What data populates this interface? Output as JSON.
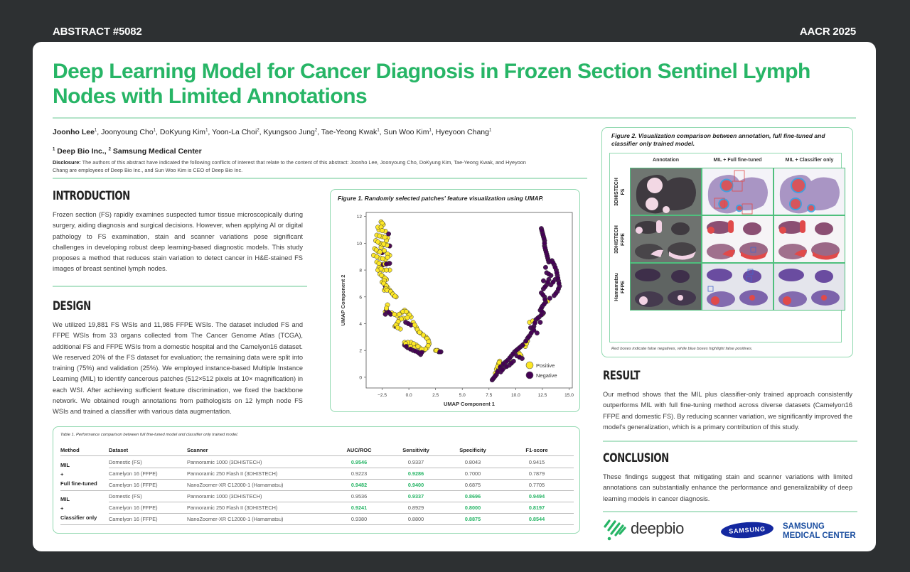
{
  "header": {
    "abstract_number": "ABSTRACT #5082",
    "conference": "AACR 2025"
  },
  "title": "Deep Learning Model for Cancer Diagnosis in Frozen Section Sentinel Lymph Nodes with Limited Annotations",
  "authors": [
    {
      "name": "Joonho Lee",
      "aff": "1",
      "bold": true
    },
    {
      "name": "Joonyoung Cho",
      "aff": "1"
    },
    {
      "name": "DoKyung Kim",
      "aff": "1"
    },
    {
      "name": "Yoon-La Choi",
      "aff": "2"
    },
    {
      "name": "Kyungsoo Jung",
      "aff": "2"
    },
    {
      "name": "Tae-Yeong Kwak",
      "aff": "1"
    },
    {
      "name": "Sun Woo Kim",
      "aff": "1"
    },
    {
      "name": "Hyeyoon Chang",
      "aff": "1"
    }
  ],
  "affiliations": [
    {
      "num": "1",
      "name": "Deep Bio Inc.,"
    },
    {
      "num": "2",
      "name": "Samsung Medical Center"
    }
  ],
  "disclosure": {
    "label": "Disclosure:",
    "text": "The authors of this abstract have indicated the following conflicts of interest that relate to the content of this abstract: Joonho Lee, Joonyoung Cho, DoKyung Kim, Tae-Yeong Kwak, and Hyeyoon Chang are employees of Deep Bio Inc., and Sun Woo Kim is CEO of Deep Bio Inc."
  },
  "sections": {
    "introduction": {
      "heading": "INTRODUCTION",
      "text": "Frozen section (FS) rapidly examines suspected tumor tissue microscopically during surgery, aiding diagnosis and surgical decisions. However, when applying AI or digital pathology to FS examination, stain and scanner variations pose significant challenges in developing robust deep learning-based diagnostic models. This study proposes a method that reduces stain variation to detect cancer in H&E-stained FS images of breast sentinel lymph nodes."
    },
    "design": {
      "heading": "DESIGN",
      "text": "We utilized 19,881 FS WSIs and 11,985 FFPE WSIs. The dataset included FS and FFPE WSIs from 33 organs collected from The Cancer Genome Atlas (TCGA), additional FS and FFPE WSIs from a domestic hospital and the Camelyon16 dataset. We reserved 20% of the FS dataset for evaluation; the remaining data were split into training (75%) and validation (25%). We employed instance-based Multiple Instance Learning (MIL) to identify cancerous patches (512×512 pixels at 10× magnification) in each WSI. After achieving sufficient feature discrimination, we fixed the backbone network. We obtained rough annotations from pathologists on 12 lymph node FS WSIs and trained a classifier with various data augmentation."
    },
    "result": {
      "heading": "RESULT",
      "text": "Our method shows that the MIL plus classifier-only trained approach consistently outperforms MIL with full fine-tuning method across diverse datasets (Camelyon16 FFPE and domestic FS). By reducing scanner variation, we significantly improved the model's generalization, which is a primary contribution of this study."
    },
    "conclusion": {
      "heading": "CONCLUSION",
      "text": "These findings suggest that mitigating stain and scanner variations with limited annotations can substantially enhance the performance and generalizability of deep learning models in cancer diagnosis."
    }
  },
  "figure1": {
    "caption": "Figure 1. Randomly selected patches' feature visualization using UMAP."
  },
  "chart_data": {
    "type": "scatter",
    "title": "Figure 1. Randomly selected patches' feature visualization using UMAP.",
    "xlabel": "UMAP Component 1",
    "ylabel": "UMAP Component 2",
    "xlim": [
      -4.0,
      15.3
    ],
    "ylim": [
      -0.8,
      12.3
    ],
    "xticks": [
      "-2.5",
      "0.0",
      "2.5",
      "5.0",
      "7.5",
      "10.0",
      "12.5",
      "15.0"
    ],
    "yticks": [
      "0",
      "2",
      "4",
      "6",
      "8",
      "10",
      "12"
    ],
    "legend": {
      "position": "lower right",
      "entries": [
        "Positive",
        "Negative"
      ]
    },
    "colors": {
      "Positive": "#fde725",
      "Negative": "#440154"
    },
    "series": [
      {
        "name": "Positive",
        "points": [
          [
            -2.6,
            11.6
          ],
          [
            -2.4,
            11.4
          ],
          [
            -2.8,
            11.0
          ],
          [
            -2.2,
            10.9
          ],
          [
            -3.0,
            10.6
          ],
          [
            -2.5,
            10.5
          ],
          [
            -2.0,
            10.4
          ],
          [
            -3.1,
            10.2
          ],
          [
            -2.7,
            10.0
          ],
          [
            -2.3,
            9.9
          ],
          [
            -1.8,
            9.8
          ],
          [
            -3.2,
            9.6
          ],
          [
            -2.9,
            9.4
          ],
          [
            -2.5,
            9.3
          ],
          [
            -3.3,
            9.1
          ],
          [
            -2.7,
            8.9
          ],
          [
            -2.2,
            8.8
          ],
          [
            -1.8,
            9.1
          ],
          [
            -3.0,
            8.6
          ],
          [
            -2.6,
            8.4
          ],
          [
            -1.9,
            8.5
          ],
          [
            -2.8,
            8.2
          ],
          [
            -2.4,
            8.0
          ],
          [
            -1.8,
            8.0
          ],
          [
            -2.7,
            7.7
          ],
          [
            -2.4,
            7.5
          ],
          [
            -2.1,
            7.3
          ],
          [
            -2.5,
            7.1
          ],
          [
            -2.2,
            6.9
          ],
          [
            -2.0,
            6.7
          ],
          [
            -2.3,
            6.5
          ],
          [
            -1.8,
            6.5
          ],
          [
            -1.6,
            6.3
          ],
          [
            -1.4,
            6.1
          ],
          [
            -1.2,
            6.0
          ],
          [
            -2.0,
            5.4
          ],
          [
            -2.2,
            4.9
          ],
          [
            -1.6,
            4.8
          ],
          [
            -1.1,
            4.6
          ],
          [
            -0.7,
            4.8
          ],
          [
            -0.4,
            5.0
          ],
          [
            -0.1,
            4.8
          ],
          [
            0.2,
            4.5
          ],
          [
            -0.5,
            4.4
          ],
          [
            -0.9,
            4.3
          ],
          [
            -1.1,
            4.0
          ],
          [
            -1.3,
            3.8
          ],
          [
            -0.8,
            3.6
          ],
          [
            0.4,
            4.1
          ],
          [
            0.7,
            3.7
          ],
          [
            0.9,
            3.4
          ],
          [
            1.1,
            3.3
          ],
          [
            1.6,
            3.0
          ],
          [
            1.8,
            2.8
          ],
          [
            1.9,
            2.5
          ],
          [
            1.7,
            2.2
          ],
          [
            1.4,
            2.0
          ],
          [
            1.0,
            2.2
          ],
          [
            0.7,
            2.4
          ],
          [
            0.2,
            2.6
          ],
          [
            -0.4,
            2.6
          ],
          [
            -0.2,
            2.4
          ],
          [
            0.5,
            2.2
          ],
          [
            2.5,
            2.0
          ],
          [
            2.7,
            2.0
          ],
          [
            -2.9,
            11.2
          ],
          [
            -2.1,
            10.2
          ],
          [
            -2.6,
            9.7
          ],
          [
            -2.0,
            9.2
          ],
          [
            -2.9,
            8.0
          ],
          [
            8.2,
            0.6
          ],
          [
            8.4,
            1.0
          ],
          [
            8.5,
            1.2
          ],
          [
            8.1,
            0.3
          ],
          [
            9.6,
            1.1
          ],
          [
            10.3,
            1.8
          ],
          [
            10.5,
            1.6
          ],
          [
            10.9,
            2.3
          ],
          [
            11.1,
            2.7
          ],
          [
            11.3,
            4.1
          ],
          [
            13.0,
            5.7
          ],
          [
            12.5,
            4.7
          ],
          [
            11.6,
            4.2
          ]
        ]
      },
      {
        "name": "Negative",
        "points": [
          [
            -2.5,
            9.3
          ],
          [
            -2.4,
            8.4
          ],
          [
            -1.8,
            8.5
          ],
          [
            -1.9,
            10.7
          ],
          [
            -1.8,
            9.8
          ],
          [
            -2.2,
            6.8
          ],
          [
            -2.1,
            5.0
          ],
          [
            -1.7,
            4.7
          ],
          [
            -1.2,
            3.8
          ],
          [
            -0.4,
            2.4
          ],
          [
            -0.1,
            2.2
          ],
          [
            0.4,
            2.0
          ],
          [
            0.8,
            1.9
          ],
          [
            1.1,
            1.7
          ],
          [
            1.3,
            2.0
          ],
          [
            -0.3,
            4.1
          ],
          [
            0.2,
            3.9
          ],
          [
            3.0,
            1.9
          ],
          [
            2.8,
            1.9
          ],
          [
            -2.2,
            4.7
          ],
          [
            12.4,
            11.1
          ],
          [
            12.5,
            10.8
          ],
          [
            12.6,
            10.5
          ],
          [
            12.7,
            10.2
          ],
          [
            12.7,
            9.8
          ],
          [
            12.8,
            9.5
          ],
          [
            12.9,
            9.2
          ],
          [
            13.0,
            8.9
          ],
          [
            13.1,
            8.6
          ],
          [
            13.4,
            8.7
          ],
          [
            13.6,
            8.4
          ],
          [
            13.8,
            8.0
          ],
          [
            13.9,
            7.6
          ],
          [
            14.0,
            7.2
          ],
          [
            14.1,
            6.8
          ],
          [
            13.9,
            6.4
          ],
          [
            13.6,
            6.1
          ],
          [
            13.1,
            7.3
          ],
          [
            12.9,
            6.9
          ],
          [
            12.6,
            6.6
          ],
          [
            12.9,
            7.8
          ],
          [
            13.3,
            7.6
          ],
          [
            12.4,
            6.3
          ],
          [
            12.7,
            6.0
          ],
          [
            12.8,
            5.6
          ],
          [
            12.5,
            5.3
          ],
          [
            12.3,
            5.0
          ],
          [
            12.6,
            4.8
          ],
          [
            12.2,
            4.5
          ],
          [
            11.9,
            4.3
          ],
          [
            11.7,
            3.8
          ],
          [
            11.6,
            3.5
          ],
          [
            11.3,
            3.1
          ],
          [
            11.1,
            2.9
          ],
          [
            10.8,
            2.5
          ],
          [
            10.5,
            2.3
          ],
          [
            10.2,
            2.1
          ],
          [
            9.9,
            1.9
          ],
          [
            9.6,
            1.6
          ],
          [
            9.3,
            1.3
          ],
          [
            9.0,
            1.1
          ],
          [
            8.7,
            0.9
          ],
          [
            8.4,
            0.6
          ],
          [
            8.2,
            0.2
          ],
          [
            8.0,
            0.0
          ],
          [
            7.8,
            -0.2
          ],
          [
            8.6,
            0.4
          ],
          [
            8.9,
            0.7
          ],
          [
            9.4,
            0.9
          ],
          [
            9.8,
            1.2
          ],
          [
            10.6,
            1.4
          ],
          [
            10.1,
            1.6
          ],
          [
            11.4,
            3.7
          ],
          [
            12.0,
            3.3
          ],
          [
            12.3,
            4.1
          ],
          [
            13.3,
            6.9
          ],
          [
            13.7,
            7.3
          ],
          [
            12.8,
            8.2
          ],
          [
            12.6,
            7.2
          ],
          [
            13.2,
            5.9
          ]
        ]
      }
    ]
  },
  "figure2": {
    "caption": "Figure 2.  Visualization comparison between annotation, full fine-tuned and classifier only trained model.",
    "columns": [
      "Annotation",
      "MIL + Full fine-tuned",
      "MIL + Classifier only"
    ],
    "rows": [
      {
        "line1": "3DHISTECH",
        "line2": "FS"
      },
      {
        "line1": "3DHISTECH",
        "line2": "FFPE"
      },
      {
        "line1": "Hamamatsu",
        "line2": "FFPE"
      }
    ],
    "footnote": "Red boxes indicate false negatives, while blue boxes highlight false positives."
  },
  "table1": {
    "caption": "Table 1. Performance comparison between full fine-tuned model and classifier only trained model.",
    "headers": [
      "Method",
      "Dataset",
      "Scanner",
      "AUC/ROC",
      "Sensitivity",
      "Specificity",
      "F1-score"
    ],
    "groups": [
      {
        "method": [
          "MIL",
          "+",
          "Full fine-tuned"
        ],
        "rows": [
          {
            "dataset": "Domestic (FS)",
            "scanner": "Pannoramic 1000 (3DHISTECH)",
            "auc": "0.9546",
            "sens": "0.9337",
            "spec": "0.8043",
            "f1": "0.9415",
            "hl": [
              "auc"
            ]
          },
          {
            "dataset": "Camelyon 16 (FFPE)",
            "scanner": "Pannoramic 250 Flash II (3DHISTECH)",
            "auc": "0.9223",
            "sens": "0.9286",
            "spec": "0.7000",
            "f1": "0.7879",
            "hl": [
              "sens"
            ]
          },
          {
            "dataset": "Camelyon 16 (FFPE)",
            "scanner": "NanoZoomer-XR C12000-1 (Hamamatsu)",
            "auc": "0.9482",
            "sens": "0.9400",
            "spec": "0.6875",
            "f1": "0.7705",
            "hl": [
              "auc",
              "sens"
            ]
          }
        ]
      },
      {
        "method": [
          "MIL",
          "+",
          "Classifier only"
        ],
        "rows": [
          {
            "dataset": "Domestic (FS)",
            "scanner": "Pannoramic 1000 (3DHISTECH)",
            "auc": "0.9536",
            "sens": "0.9337",
            "spec": "0.8696",
            "f1": "0.9494",
            "hl": [
              "sens",
              "spec",
              "f1"
            ]
          },
          {
            "dataset": "Camelyon 16 (FFPE)",
            "scanner": "Pannoramic 250 Flash II (3DHISTECH)",
            "auc": "0.9241",
            "sens": "0.8929",
            "spec": "0.8000",
            "f1": "0.8197",
            "hl": [
              "auc",
              "spec",
              "f1"
            ]
          },
          {
            "dataset": "Camelyon 16 (FFPE)",
            "scanner": "NanoZoomer-XR C12000-1 (Hamamatsu)",
            "auc": "0.9380",
            "sens": "0.8800",
            "spec": "0.8875",
            "f1": "0.8544",
            "hl": [
              "spec",
              "f1"
            ]
          }
        ]
      }
    ]
  },
  "logos": {
    "deepbio": "deepbio",
    "samsung": "SAMSUNG",
    "smc_line1": "SAMSUNG",
    "smc_line2": "MEDICAL CENTER"
  },
  "colors": {
    "accent": "#27b566",
    "divider": "#b3e3c8",
    "background": "#2d3032",
    "samsung_blue": "#1428a0",
    "smc_blue": "#1c4fa0"
  }
}
